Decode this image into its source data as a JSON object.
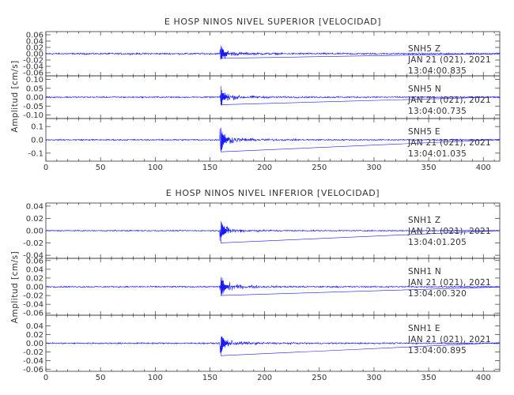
{
  "colors": {
    "trace": "#1a1aff",
    "axis": "#333333",
    "background": "#ffffff"
  },
  "chart_data": [
    {
      "type": "line",
      "title": "E HOSP NINOS NIVEL SUPERIOR [VELOCIDAD]",
      "ylabel": "Amplitud [cm/s]",
      "xlabel": "",
      "xlim": [
        0,
        415
      ],
      "xticks": [
        0,
        50,
        100,
        150,
        200,
        250,
        300,
        350,
        400
      ],
      "event_time": 160,
      "grid": false,
      "panels": [
        {
          "station": "SNH5",
          "component": "Z",
          "date": "JAN 21 (021), 2021",
          "time": "13:04:00.835",
          "ylim": [
            -0.07,
            0.07
          ],
          "yticks": [
            0.06,
            0.04,
            0.02,
            0.0,
            -0.02,
            -0.04,
            -0.06
          ],
          "ytick_labels": [
            "0.06",
            "0.04",
            "0.02",
            "0.00",
            "-0.02",
            "-0.04",
            "-0.06"
          ],
          "noise": 0.004,
          "peak": 0.03
        },
        {
          "station": "SNH5",
          "component": "N",
          "date": "JAN 21 (021), 2021",
          "time": "13:04:00.735",
          "ylim": [
            -0.12,
            0.12
          ],
          "yticks": [
            0.1,
            0.05,
            0.0,
            -0.05,
            -0.1
          ],
          "ytick_labels": [
            "0.10",
            "0.05",
            "0.00",
            "-0.05",
            "-0.10"
          ],
          "noise": 0.006,
          "peak": 0.07
        },
        {
          "station": "SNH5",
          "component": "E",
          "date": "JAN 21 (021), 2021",
          "time": "13:04:01.035",
          "ylim": [
            -0.16,
            0.16
          ],
          "yticks": [
            0.1,
            0.0,
            -0.1
          ],
          "ytick_labels": [
            "0.1",
            "0.0",
            "-0.1"
          ],
          "noise": 0.008,
          "peak": 0.12
        }
      ]
    },
    {
      "type": "line",
      "title": "E HOSP NINOS NIVEL INFERIOR [VELOCIDAD]",
      "ylabel": "Amplitud [cm/s]",
      "xlabel": "",
      "xlim": [
        0,
        415
      ],
      "xticks": [
        0,
        50,
        100,
        150,
        200,
        250,
        300,
        350,
        400
      ],
      "event_time": 160,
      "grid": false,
      "panels": [
        {
          "station": "SNH1",
          "component": "Z",
          "date": "JAN 21 (021), 2021",
          "time": "13:04:01.205",
          "ylim": [
            -0.045,
            0.045
          ],
          "yticks": [
            0.04,
            0.02,
            0.0,
            -0.02,
            -0.04
          ],
          "ytick_labels": [
            "0.04",
            "0.02",
            "0.00",
            "-0.02",
            "-0.04"
          ],
          "noise": 0.0015,
          "peak": 0.02
        },
        {
          "station": "SNH1",
          "component": "N",
          "date": "JAN 21 (021), 2021",
          "time": "13:04:00.320",
          "ylim": [
            -0.065,
            0.065
          ],
          "yticks": [
            0.06,
            0.04,
            0.02,
            0.0,
            -0.02,
            -0.04,
            -0.06
          ],
          "ytick_labels": [
            "0.06",
            "0.04",
            "0.02",
            "0.00",
            "-0.02",
            "-0.04",
            "-0.06"
          ],
          "noise": 0.0025,
          "peak": 0.035
        },
        {
          "station": "SNH1",
          "component": "E",
          "date": "JAN 21 (021), 2021",
          "time": "13:04:00.895",
          "ylim": [
            -0.065,
            0.065
          ],
          "yticks": [
            0.04,
            0.02,
            0.0,
            -0.02,
            -0.04,
            -0.06
          ],
          "ytick_labels": [
            "0.04",
            "0.02",
            "0.00",
            "-0.02",
            "-0.04",
            "-0.06"
          ],
          "noise": 0.0025,
          "peak": 0.03
        }
      ]
    }
  ]
}
